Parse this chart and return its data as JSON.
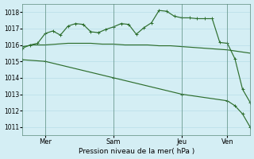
{
  "xlabel": "Pression niveau de la mer( hPa )",
  "ylim": [
    1010.5,
    1018.5
  ],
  "yticks": [
    1011,
    1012,
    1013,
    1014,
    1015,
    1016,
    1017,
    1018
  ],
  "xtick_labels": [
    "Mer",
    "Sam",
    "Jeu",
    "Ven"
  ],
  "xtick_positions": [
    12,
    48,
    84,
    108
  ],
  "vline_positions": [
    12,
    48,
    84,
    108
  ],
  "bg_color": "#d4eef4",
  "grid_color": "#b8dde8",
  "line_color": "#2d6e2d",
  "line1_x": [
    0,
    6,
    12,
    18,
    24,
    30,
    36,
    42,
    48,
    54,
    60,
    66,
    72,
    78,
    84,
    90,
    96,
    102,
    108,
    114,
    120
  ],
  "line1_y": [
    1015.9,
    1016.0,
    1016.0,
    1016.05,
    1016.1,
    1016.1,
    1016.1,
    1016.05,
    1016.05,
    1016.0,
    1016.0,
    1016.0,
    1015.95,
    1015.95,
    1015.9,
    1015.85,
    1015.8,
    1015.75,
    1015.7,
    1015.6,
    1015.5
  ],
  "line2_x": [
    0,
    4,
    8,
    12,
    16,
    20,
    24,
    28,
    32,
    36,
    40,
    44,
    48,
    52,
    56,
    60,
    64,
    68,
    72,
    76,
    80,
    84,
    88,
    92,
    96,
    100,
    104,
    108,
    112,
    116,
    120
  ],
  "line2_y": [
    1015.8,
    1016.0,
    1016.1,
    1016.7,
    1016.85,
    1016.6,
    1017.15,
    1017.3,
    1017.25,
    1016.8,
    1016.75,
    1016.95,
    1017.1,
    1017.3,
    1017.25,
    1016.65,
    1017.05,
    1017.35,
    1018.1,
    1018.05,
    1017.75,
    1017.65,
    1017.65,
    1017.6,
    1017.6,
    1017.6,
    1016.15,
    1016.1,
    1015.15,
    1013.3,
    1012.5
  ],
  "line3_x": [
    0,
    12,
    48,
    84,
    108,
    112,
    116,
    120
  ],
  "line3_y": [
    1015.1,
    1015.0,
    1014.0,
    1013.0,
    1012.6,
    1012.3,
    1011.8,
    1011.0
  ],
  "xmax": 120
}
